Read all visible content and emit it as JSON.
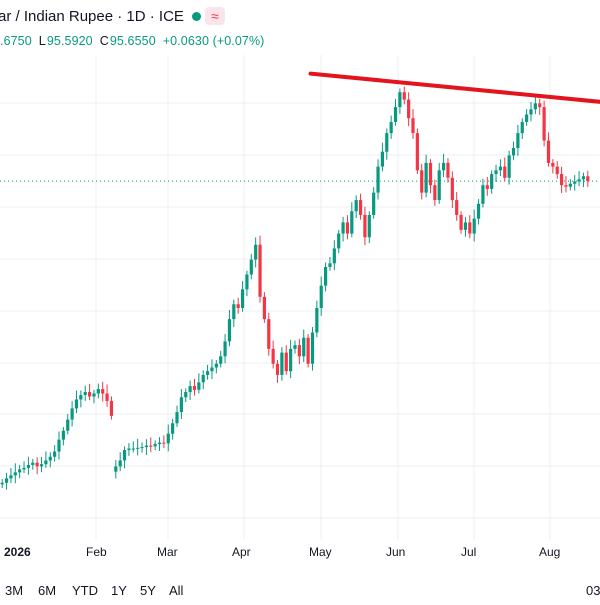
{
  "header": {
    "title": "ar / Indian Rupee · 1D · ICE",
    "status_color": "#089981",
    "wave_icon": "≈"
  },
  "ohlc": {
    "open": ".6750",
    "high_label": "L",
    "high_value": "95.5920",
    "close_label": "C",
    "close_value": "95.6550",
    "change": "+0.0630 (+0.07%)"
  },
  "x_axis": {
    "year": "2026",
    "months": [
      "Feb",
      "Mar",
      "Apr",
      "May",
      "Jun",
      "Jul",
      "Aug"
    ],
    "corner": "03"
  },
  "range_buttons": [
    "3M",
    "6M",
    "YTD",
    "1Y",
    "5Y",
    "All"
  ],
  "colors": {
    "up": "#089981",
    "down": "#f23645",
    "trendline": "#e3141e",
    "grid": "#eceff3"
  },
  "chart_data": {
    "type": "candlestick",
    "x_start": "2026-01-01",
    "x_end": "2026-08-17",
    "last_close": 95.655,
    "trendline": [
      {
        "date": "2026-05-01",
        "value": 97.1
      },
      {
        "date": "2026-08-27",
        "value": 96.7
      }
    ],
    "closes": [
      91.6,
      91.66,
      91.7,
      91.74,
      91.78,
      91.8,
      91.84,
      91.87,
      91.82,
      91.85,
      91.9,
      91.95,
      92.02,
      92.18,
      92.3,
      92.45,
      92.6,
      92.72,
      92.78,
      92.82,
      92.76,
      92.8,
      92.86,
      92.8,
      92.7,
      92.5,
      91.82,
      91.9,
      92.04,
      92.06,
      92.06,
      92.07,
      92.08,
      92.1,
      92.09,
      92.12,
      92.14,
      92.13,
      92.26,
      92.4,
      92.55,
      92.75,
      92.82,
      92.9,
      92.85,
      92.95,
      93.05,
      93.1,
      93.15,
      93.2,
      93.3,
      93.5,
      93.8,
      94.0,
      93.95,
      94.2,
      94.4,
      94.6,
      94.8,
      94.1,
      93.8,
      93.4,
      93.2,
      93.05,
      93.35,
      93.1,
      93.4,
      93.45,
      93.3,
      93.55,
      93.2,
      93.62,
      93.95,
      94.25,
      94.5,
      94.55,
      94.75,
      94.95,
      95.1,
      94.95,
      95.25,
      95.4,
      95.2,
      94.9,
      95.2,
      95.5,
      95.85,
      96.05,
      96.3,
      96.45,
      96.65,
      96.85,
      96.75,
      96.5,
      96.3,
      95.8,
      95.5,
      95.9,
      95.6,
      95.4,
      95.8,
      95.9,
      95.7,
      95.4,
      95.2,
      95.0,
      95.1,
      94.95,
      95.15,
      95.35,
      95.6,
      95.55,
      95.75,
      95.8,
      95.85,
      95.7,
      96.0,
      96.1,
      96.3,
      96.45,
      96.55,
      96.62,
      96.7,
      96.65,
      96.2,
      95.9,
      95.85,
      95.75,
      95.6,
      95.58,
      95.62,
      95.65,
      95.68,
      95.72,
      95.655
    ]
  }
}
